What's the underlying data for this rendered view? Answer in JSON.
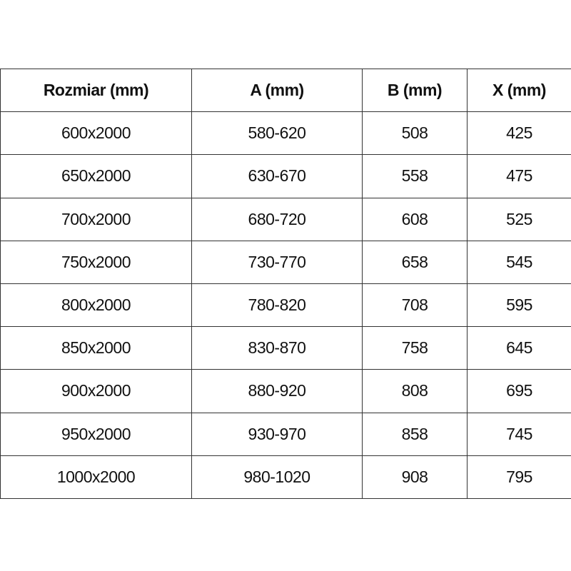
{
  "table": {
    "headers": [
      "Rozmiar (mm)",
      "A (mm)",
      "B (mm)",
      "X (mm)"
    ],
    "rows": [
      [
        "600x2000",
        "580-620",
        "508",
        "425"
      ],
      [
        "650x2000",
        "630-670",
        "558",
        "475"
      ],
      [
        "700x2000",
        "680-720",
        "608",
        "525"
      ],
      [
        "750x2000",
        "730-770",
        "658",
        "545"
      ],
      [
        "800x2000",
        "780-820",
        "708",
        "595"
      ],
      [
        "850x2000",
        "830-870",
        "758",
        "645"
      ],
      [
        "900x2000",
        "880-920",
        "808",
        "695"
      ],
      [
        "950x2000",
        "930-970",
        "858",
        "745"
      ],
      [
        "1000x2000",
        "980-1020",
        "908",
        "795"
      ]
    ]
  }
}
